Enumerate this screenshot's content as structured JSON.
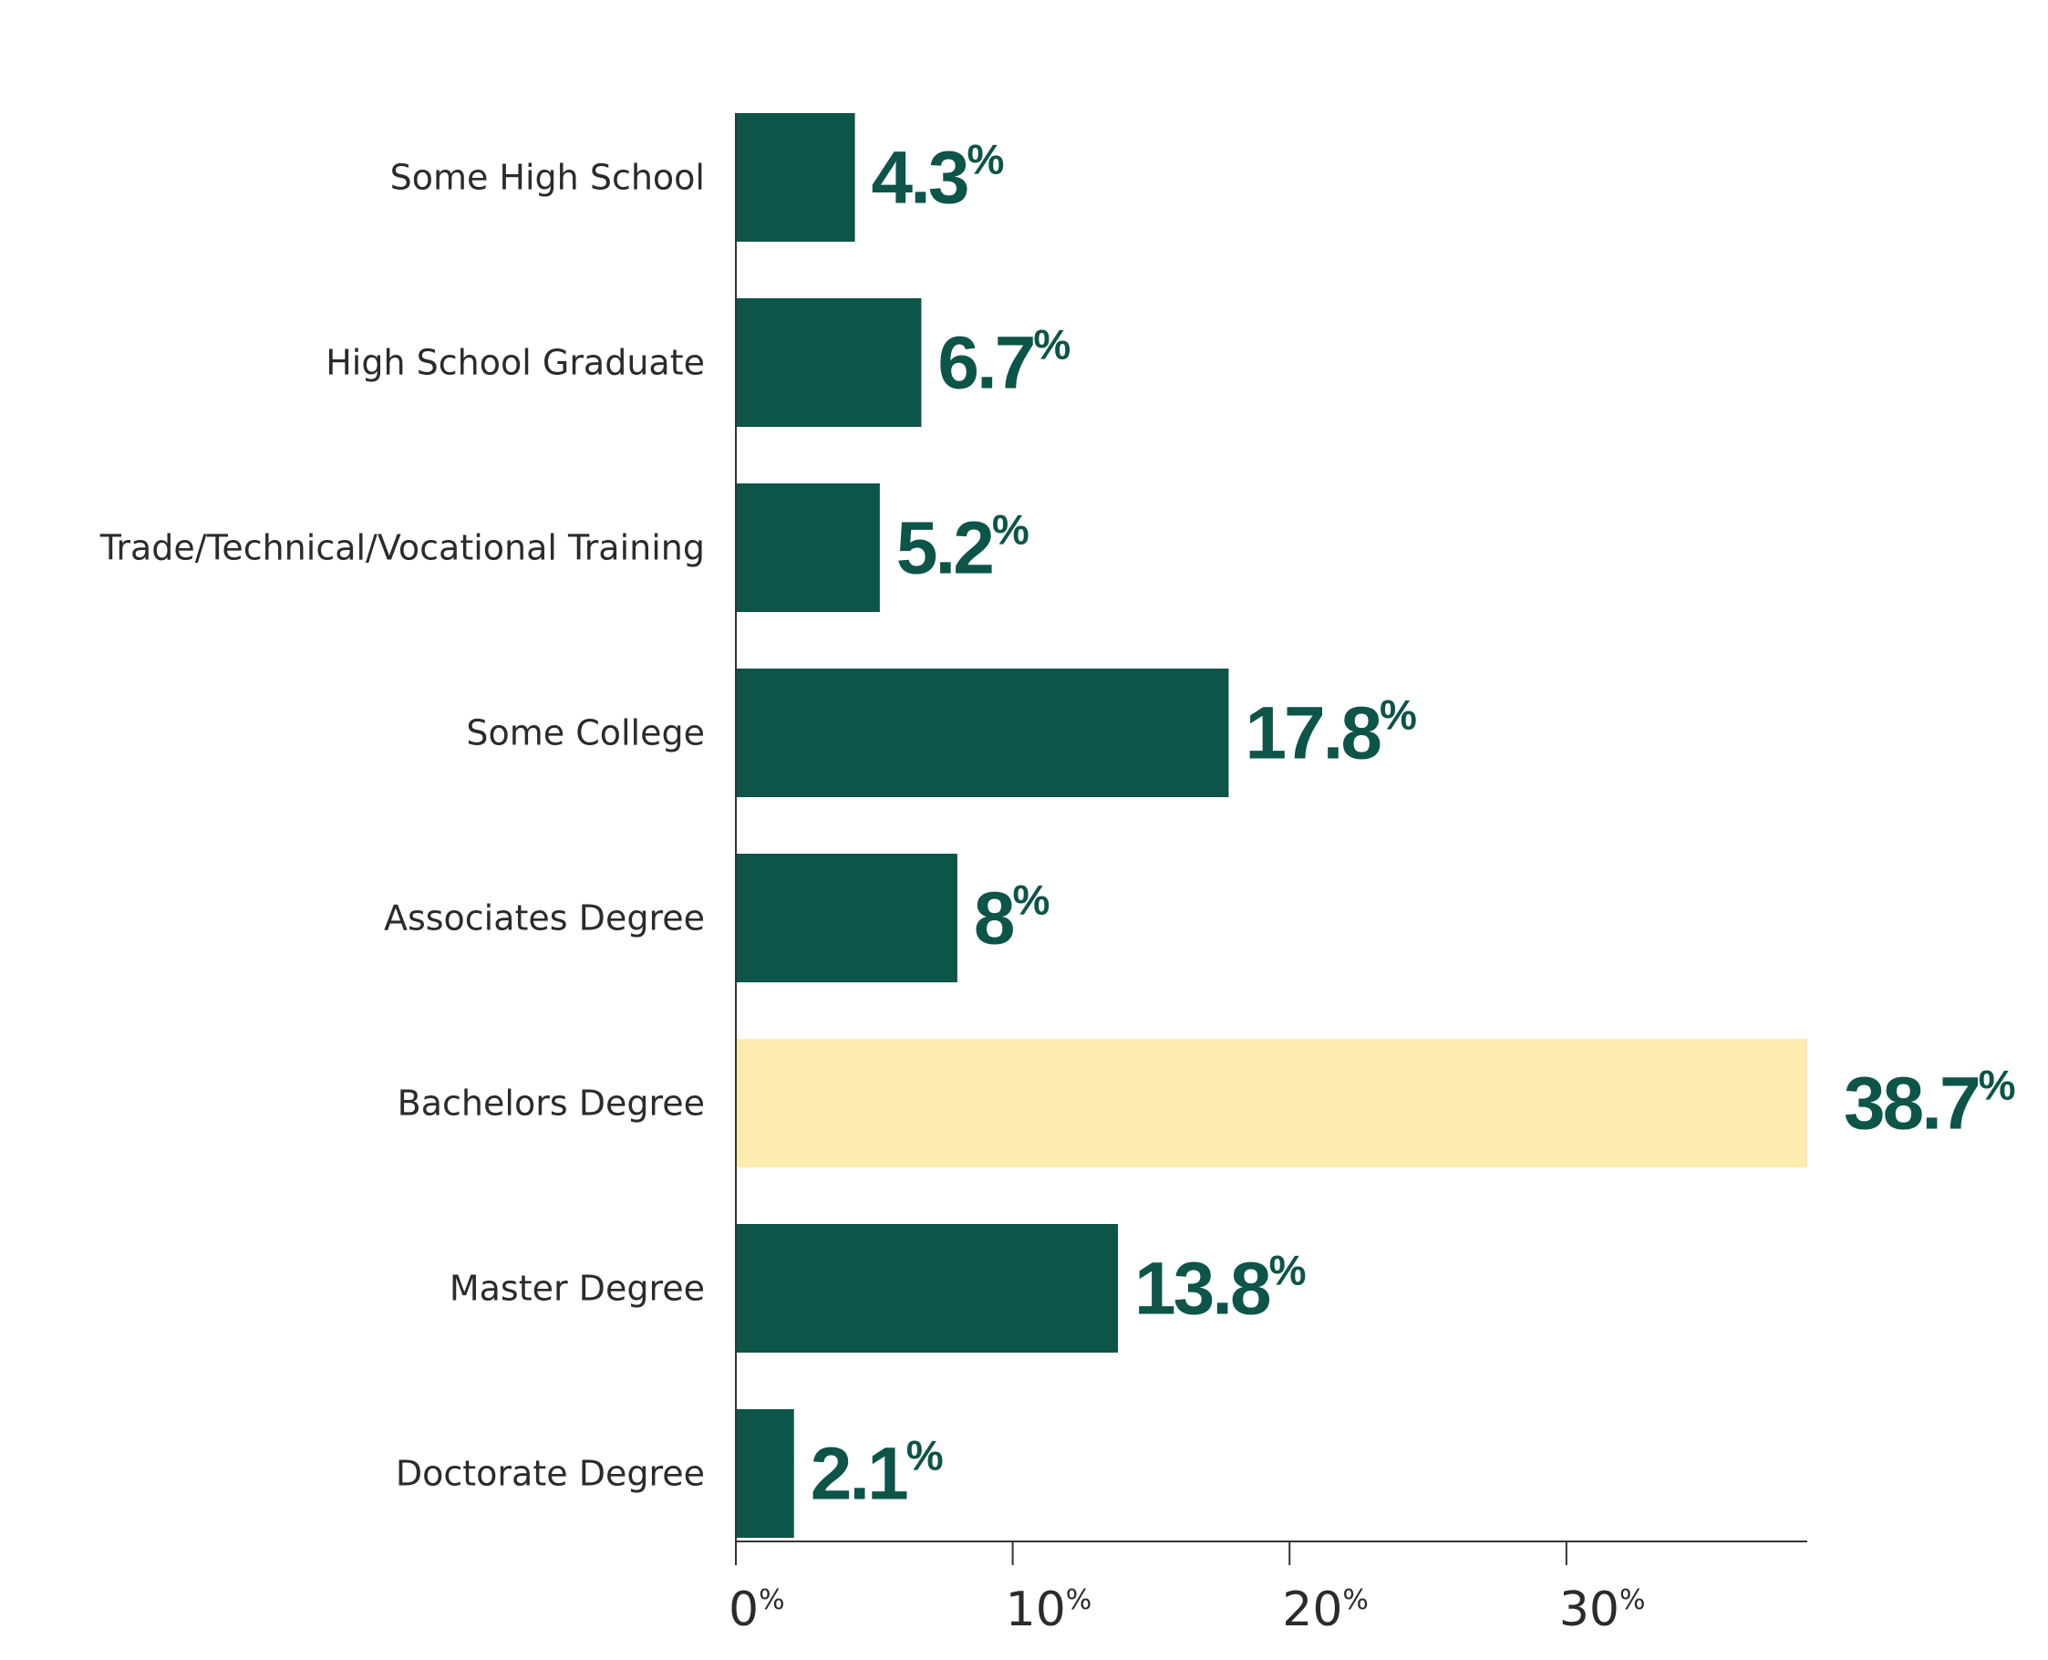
{
  "colors": {
    "bar": "#0d5449",
    "highlight": "#fdebb0",
    "value_text": "#0d5449",
    "axis": "#333333"
  },
  "chart_data": {
    "type": "bar",
    "orientation": "horizontal",
    "categories": [
      "Some High School",
      "High School Graduate",
      "Trade/Technical/Vocational Training",
      "Some College",
      "Associates Degree",
      "Bachelors Degree",
      "Master Degree",
      "Doctorate Degree"
    ],
    "values": [
      4.3,
      6.7,
      5.2,
      17.8,
      8,
      38.7,
      13.8,
      2.1
    ],
    "value_labels": [
      "4.3",
      "6.7",
      "5.2",
      "17.8",
      "8",
      "38.7",
      "13.8",
      "2.1"
    ],
    "value_suffix": "%",
    "highlight_index": 5,
    "xlim": [
      0,
      38.7
    ],
    "x_ticks": [
      0,
      10,
      20,
      30
    ],
    "x_tick_labels": [
      "0",
      "10",
      "20",
      "30"
    ],
    "x_tick_suffix": "%",
    "grid": false,
    "legend": "none",
    "title": "",
    "xlabel": "",
    "ylabel": ""
  }
}
